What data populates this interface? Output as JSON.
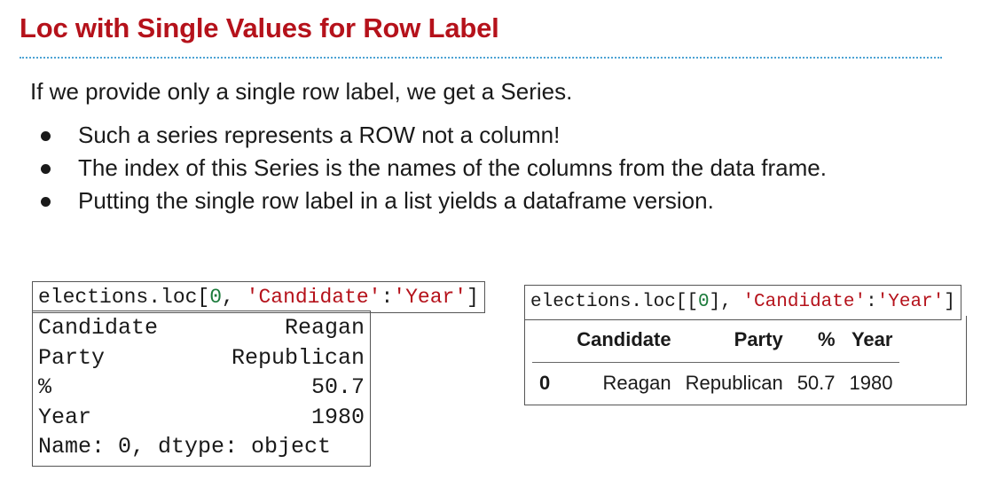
{
  "title": "Loc with Single Values for Row Label",
  "intro": "If we provide only a single row label, we get a Series.",
  "bullets": [
    "Such a series represents a ROW not a column!",
    "The index of this Series is the names of the columns from the data frame.",
    "Putting the single row label in a list yields a dataframe version."
  ],
  "left_code": {
    "prefix": "elections.loc[",
    "zero": "0",
    "sep": ", ",
    "str1": "'Candidate'",
    "colon": ":",
    "str2": "'Year'",
    "suffix": "]"
  },
  "series_output": {
    "rows": [
      {
        "label": "Candidate",
        "value": "Reagan"
      },
      {
        "label": "Party",
        "value": "Republican"
      },
      {
        "label": "%",
        "value": "50.7"
      },
      {
        "label": "Year",
        "value": "1980"
      }
    ],
    "footer": "Name: 0, dtype: object"
  },
  "right_code": {
    "prefix": "elections.loc[[",
    "zero": "0",
    "mid": "], ",
    "str1": "'Candidate'",
    "colon": ":",
    "str2": "'Year'",
    "suffix": "]"
  },
  "dataframe": {
    "index_header": "",
    "columns": [
      "Candidate",
      "Party",
      "%",
      "Year"
    ],
    "rows": [
      {
        "index": "0",
        "values": [
          "Reagan",
          "Republican",
          "50.7",
          "1980"
        ]
      }
    ]
  }
}
